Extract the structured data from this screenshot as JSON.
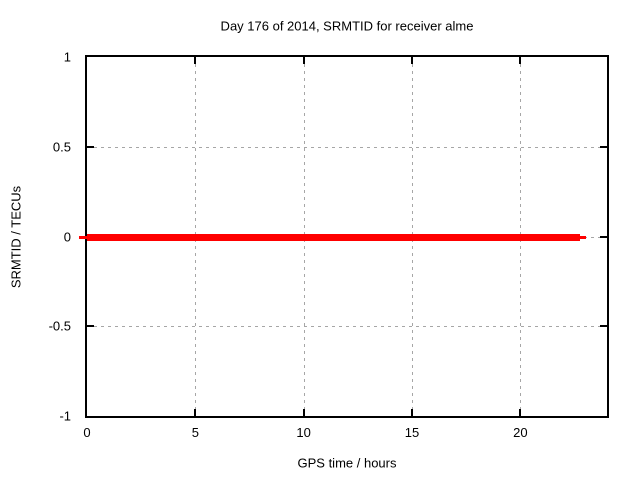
{
  "chart_data": {
    "type": "line",
    "title": "Day 176 of 2014, SRMTID for receiver alme",
    "xlabel": "GPS time / hours",
    "ylabel": "SRMTID / TECUs",
    "xlim": [
      0,
      24
    ],
    "ylim": [
      -1,
      1
    ],
    "x_ticks": [
      0,
      5,
      10,
      15,
      20
    ],
    "x_tick_labels": [
      "0",
      "5",
      "10",
      "15",
      "20"
    ],
    "y_ticks": [
      1,
      0.5,
      0,
      -0.5,
      -1
    ],
    "y_tick_labels": [
      "1",
      "0.5",
      "0",
      "-0.5",
      "-1"
    ],
    "grid": true,
    "legend": "none",
    "colors": {
      "series": "#ff0000",
      "grid": "#a6a6a6",
      "border": "#000000",
      "background": "#ffffff"
    },
    "series": [
      {
        "name": "SRMTID",
        "color": "#ff0000",
        "x": [
          0,
          22.75
        ],
        "y": [
          0,
          0
        ],
        "note": "constant thick horizontal line at zero spanning the day"
      }
    ]
  }
}
